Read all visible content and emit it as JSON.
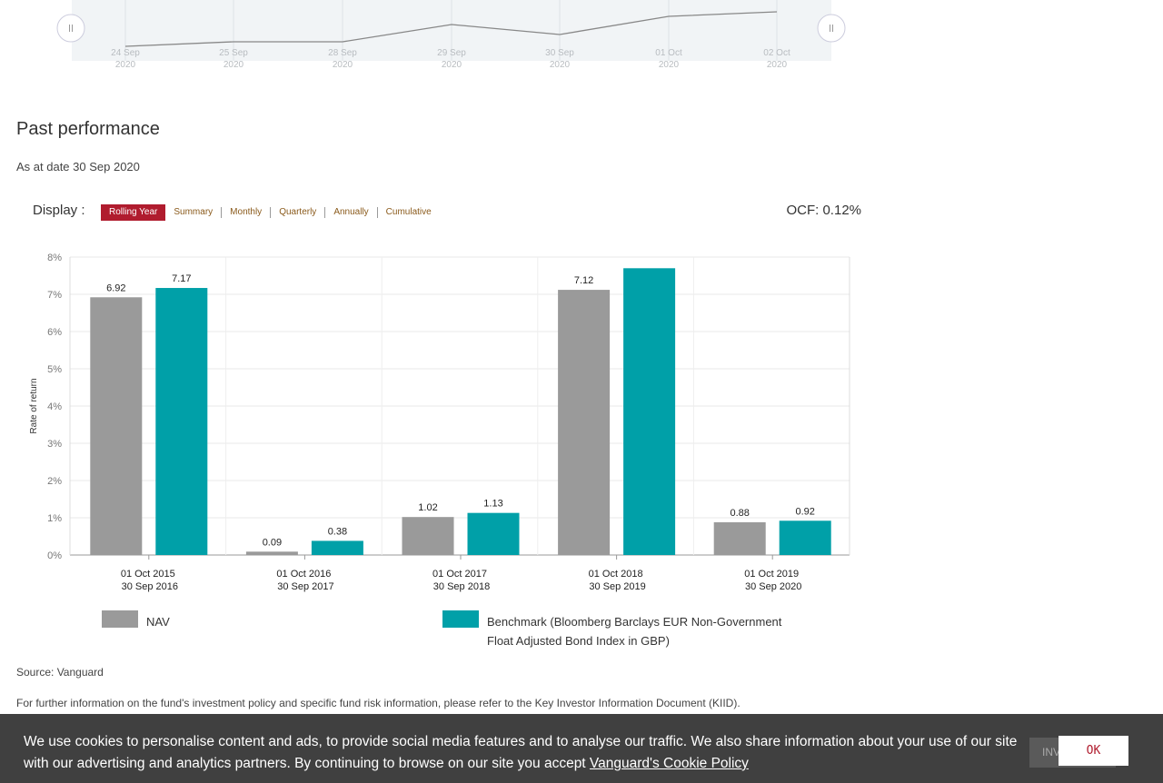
{
  "navigator": {
    "dates": [
      {
        "day": "24 Sep",
        "year": "2020"
      },
      {
        "day": "25 Sep",
        "year": "2020"
      },
      {
        "day": "28 Sep",
        "year": "2020"
      },
      {
        "day": "29 Sep",
        "year": "2020"
      },
      {
        "day": "30 Sep",
        "year": "2020"
      },
      {
        "day": "01 Oct",
        "year": "2020"
      },
      {
        "day": "02 Oct",
        "year": "2020"
      }
    ],
    "handle_icon": "grip-lines-icon"
  },
  "section": {
    "title": "Past performance",
    "as_at": "As at date 30 Sep 2020"
  },
  "display": {
    "label": "Display :",
    "tabs": [
      "Rolling Year",
      "Summary",
      "Monthly",
      "Quarterly",
      "Annually",
      "Cumulative"
    ],
    "active_tab": "Rolling Year",
    "ocf": "OCF: 0.12%"
  },
  "chart_data": {
    "type": "bar",
    "categories": [
      [
        "01 Oct 2015",
        "30 Sep 2016"
      ],
      [
        "01 Oct 2016",
        "30 Sep 2017"
      ],
      [
        "01 Oct 2017",
        "30 Sep 2018"
      ],
      [
        "01 Oct 2018",
        "30 Sep 2019"
      ],
      [
        "01 Oct 2019",
        "30 Sep 2020"
      ]
    ],
    "series": [
      {
        "name": "NAV",
        "color": "#9a9a9a",
        "values": [
          6.92,
          0.09,
          1.02,
          7.12,
          0.88
        ],
        "labels": [
          "6.92",
          "0.09",
          "1.02",
          "7.12",
          "0.88"
        ]
      },
      {
        "name": "Benchmark (Bloomberg Barclays EUR Non-Government Float Adjusted Bond Index in GBP)",
        "color": "#00a0a8",
        "values": [
          7.17,
          0.38,
          1.13,
          7.7,
          0.92
        ],
        "labels": [
          "7.17",
          "0.38",
          "1.13",
          "",
          "0.92"
        ]
      }
    ],
    "ylabel": "Rate of return",
    "yticks": [
      "0%",
      "1%",
      "2%",
      "3%",
      "4%",
      "5%",
      "6%",
      "7%",
      "8%"
    ],
    "ylim": [
      0,
      8
    ],
    "grid": true,
    "legend": "bottom"
  },
  "footer": {
    "source": "Source: Vanguard",
    "info": "For further information on the fund's investment policy and specific fund risk information, please refer to the Key Investor Information Document (KIID)."
  },
  "cookie": {
    "text": "We use cookies to personalise content and ads, to provide social media features and to analyse our traffic. We also share information about your use of our site with our advertising and analytics partners. By continuing to browse on our site you accept ",
    "link": "Vanguard's Cookie Policy",
    "hidden_button": "INVEST",
    "ok": "OK"
  }
}
